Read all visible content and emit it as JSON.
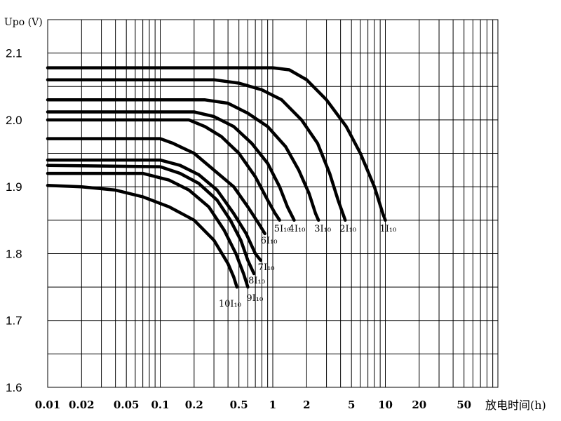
{
  "chart_data": {
    "type": "line",
    "ylabel": "Upo (V)",
    "xlabel": "放电时间(h)",
    "x_scale": "log",
    "xlim": [
      0.01,
      100
    ],
    "ylim": [
      1.6,
      2.15
    ],
    "grid": true,
    "x_ticks": [
      {
        "value": 0.01,
        "label": "0.01"
      },
      {
        "value": 0.02,
        "label": "0.02"
      },
      {
        "value": 0.05,
        "label": "0.05"
      },
      {
        "value": 0.1,
        "label": "0.1"
      },
      {
        "value": 0.2,
        "label": "0.2"
      },
      {
        "value": 0.5,
        "label": "0.5"
      },
      {
        "value": 1,
        "label": "1"
      },
      {
        "value": 2,
        "label": "2"
      },
      {
        "value": 5,
        "label": "5"
      },
      {
        "value": 10,
        "label": "10"
      },
      {
        "value": 20,
        "label": "20"
      },
      {
        "value": 50,
        "label": "50"
      }
    ],
    "y_ticks": [
      {
        "value": 1.6,
        "label": "1.6"
      },
      {
        "value": 1.7,
        "label": "1.7"
      },
      {
        "value": 1.8,
        "label": "1.8"
      },
      {
        "value": 1.9,
        "label": "1.9"
      },
      {
        "value": 2.0,
        "label": "2.0"
      },
      {
        "value": 2.1,
        "label": "2.1"
      }
    ],
    "series": [
      {
        "name": "1I₁₀",
        "points": [
          [
            0.01,
            2.078
          ],
          [
            0.5,
            2.078
          ],
          [
            1.0,
            2.078
          ],
          [
            1.4,
            2.075
          ],
          [
            2.0,
            2.06
          ],
          [
            3.0,
            2.03
          ],
          [
            4.5,
            1.99
          ],
          [
            6.0,
            1.95
          ],
          [
            8.0,
            1.9
          ],
          [
            9.5,
            1.86
          ],
          [
            10.0,
            1.85
          ]
        ]
      },
      {
        "name": "2I₁₀",
        "points": [
          [
            0.01,
            2.06
          ],
          [
            0.3,
            2.06
          ],
          [
            0.5,
            2.055
          ],
          [
            0.8,
            2.045
          ],
          [
            1.2,
            2.03
          ],
          [
            1.8,
            2.0
          ],
          [
            2.5,
            1.965
          ],
          [
            3.2,
            1.92
          ],
          [
            3.8,
            1.88
          ],
          [
            4.4,
            1.85
          ]
        ]
      },
      {
        "name": "3I₁₀",
        "points": [
          [
            0.01,
            2.03
          ],
          [
            0.25,
            2.03
          ],
          [
            0.4,
            2.025
          ],
          [
            0.6,
            2.01
          ],
          [
            0.9,
            1.99
          ],
          [
            1.3,
            1.96
          ],
          [
            1.7,
            1.925
          ],
          [
            2.1,
            1.89
          ],
          [
            2.4,
            1.86
          ],
          [
            2.55,
            1.85
          ]
        ]
      },
      {
        "name": "4I₁₀",
        "points": [
          [
            0.01,
            2.012
          ],
          [
            0.2,
            2.012
          ],
          [
            0.3,
            2.005
          ],
          [
            0.45,
            1.99
          ],
          [
            0.65,
            1.965
          ],
          [
            0.9,
            1.935
          ],
          [
            1.15,
            1.9
          ],
          [
            1.35,
            1.87
          ],
          [
            1.55,
            1.85
          ]
        ]
      },
      {
        "name": "5I₁₀",
        "points": [
          [
            0.01,
            2.0
          ],
          [
            0.18,
            2.0
          ],
          [
            0.25,
            1.99
          ],
          [
            0.35,
            1.975
          ],
          [
            0.5,
            1.95
          ],
          [
            0.7,
            1.915
          ],
          [
            0.9,
            1.88
          ],
          [
            1.05,
            1.86
          ],
          [
            1.15,
            1.85
          ]
        ]
      },
      {
        "name": "6I₁₀",
        "points": [
          [
            0.01,
            1.972
          ],
          [
            0.1,
            1.972
          ],
          [
            0.13,
            1.965
          ],
          [
            0.2,
            1.95
          ],
          [
            0.3,
            1.925
          ],
          [
            0.45,
            1.9
          ],
          [
            0.6,
            1.87
          ],
          [
            0.75,
            1.845
          ],
          [
            0.85,
            1.83
          ]
        ]
      },
      {
        "name": "7I₁₀",
        "points": [
          [
            0.01,
            1.94
          ],
          [
            0.1,
            1.94
          ],
          [
            0.15,
            1.932
          ],
          [
            0.22,
            1.918
          ],
          [
            0.32,
            1.895
          ],
          [
            0.45,
            1.86
          ],
          [
            0.58,
            1.83
          ],
          [
            0.7,
            1.8
          ],
          [
            0.78,
            1.79
          ]
        ]
      },
      {
        "name": "8I₁₀",
        "points": [
          [
            0.01,
            1.932
          ],
          [
            0.1,
            1.93
          ],
          [
            0.15,
            1.92
          ],
          [
            0.22,
            1.905
          ],
          [
            0.32,
            1.88
          ],
          [
            0.42,
            1.85
          ],
          [
            0.52,
            1.82
          ],
          [
            0.6,
            1.79
          ],
          [
            0.68,
            1.77
          ]
        ]
      },
      {
        "name": "9I₁₀",
        "points": [
          [
            0.01,
            1.92
          ],
          [
            0.07,
            1.92
          ],
          [
            0.12,
            1.91
          ],
          [
            0.18,
            1.895
          ],
          [
            0.27,
            1.87
          ],
          [
            0.37,
            1.835
          ],
          [
            0.47,
            1.8
          ],
          [
            0.55,
            1.77
          ],
          [
            0.6,
            1.75
          ]
        ]
      },
      {
        "name": "10I₁₀",
        "points": [
          [
            0.01,
            1.902
          ],
          [
            0.02,
            1.9
          ],
          [
            0.04,
            1.895
          ],
          [
            0.07,
            1.885
          ],
          [
            0.12,
            1.87
          ],
          [
            0.2,
            1.85
          ],
          [
            0.3,
            1.82
          ],
          [
            0.4,
            1.785
          ],
          [
            0.45,
            1.765
          ],
          [
            0.48,
            1.75
          ]
        ]
      }
    ]
  }
}
